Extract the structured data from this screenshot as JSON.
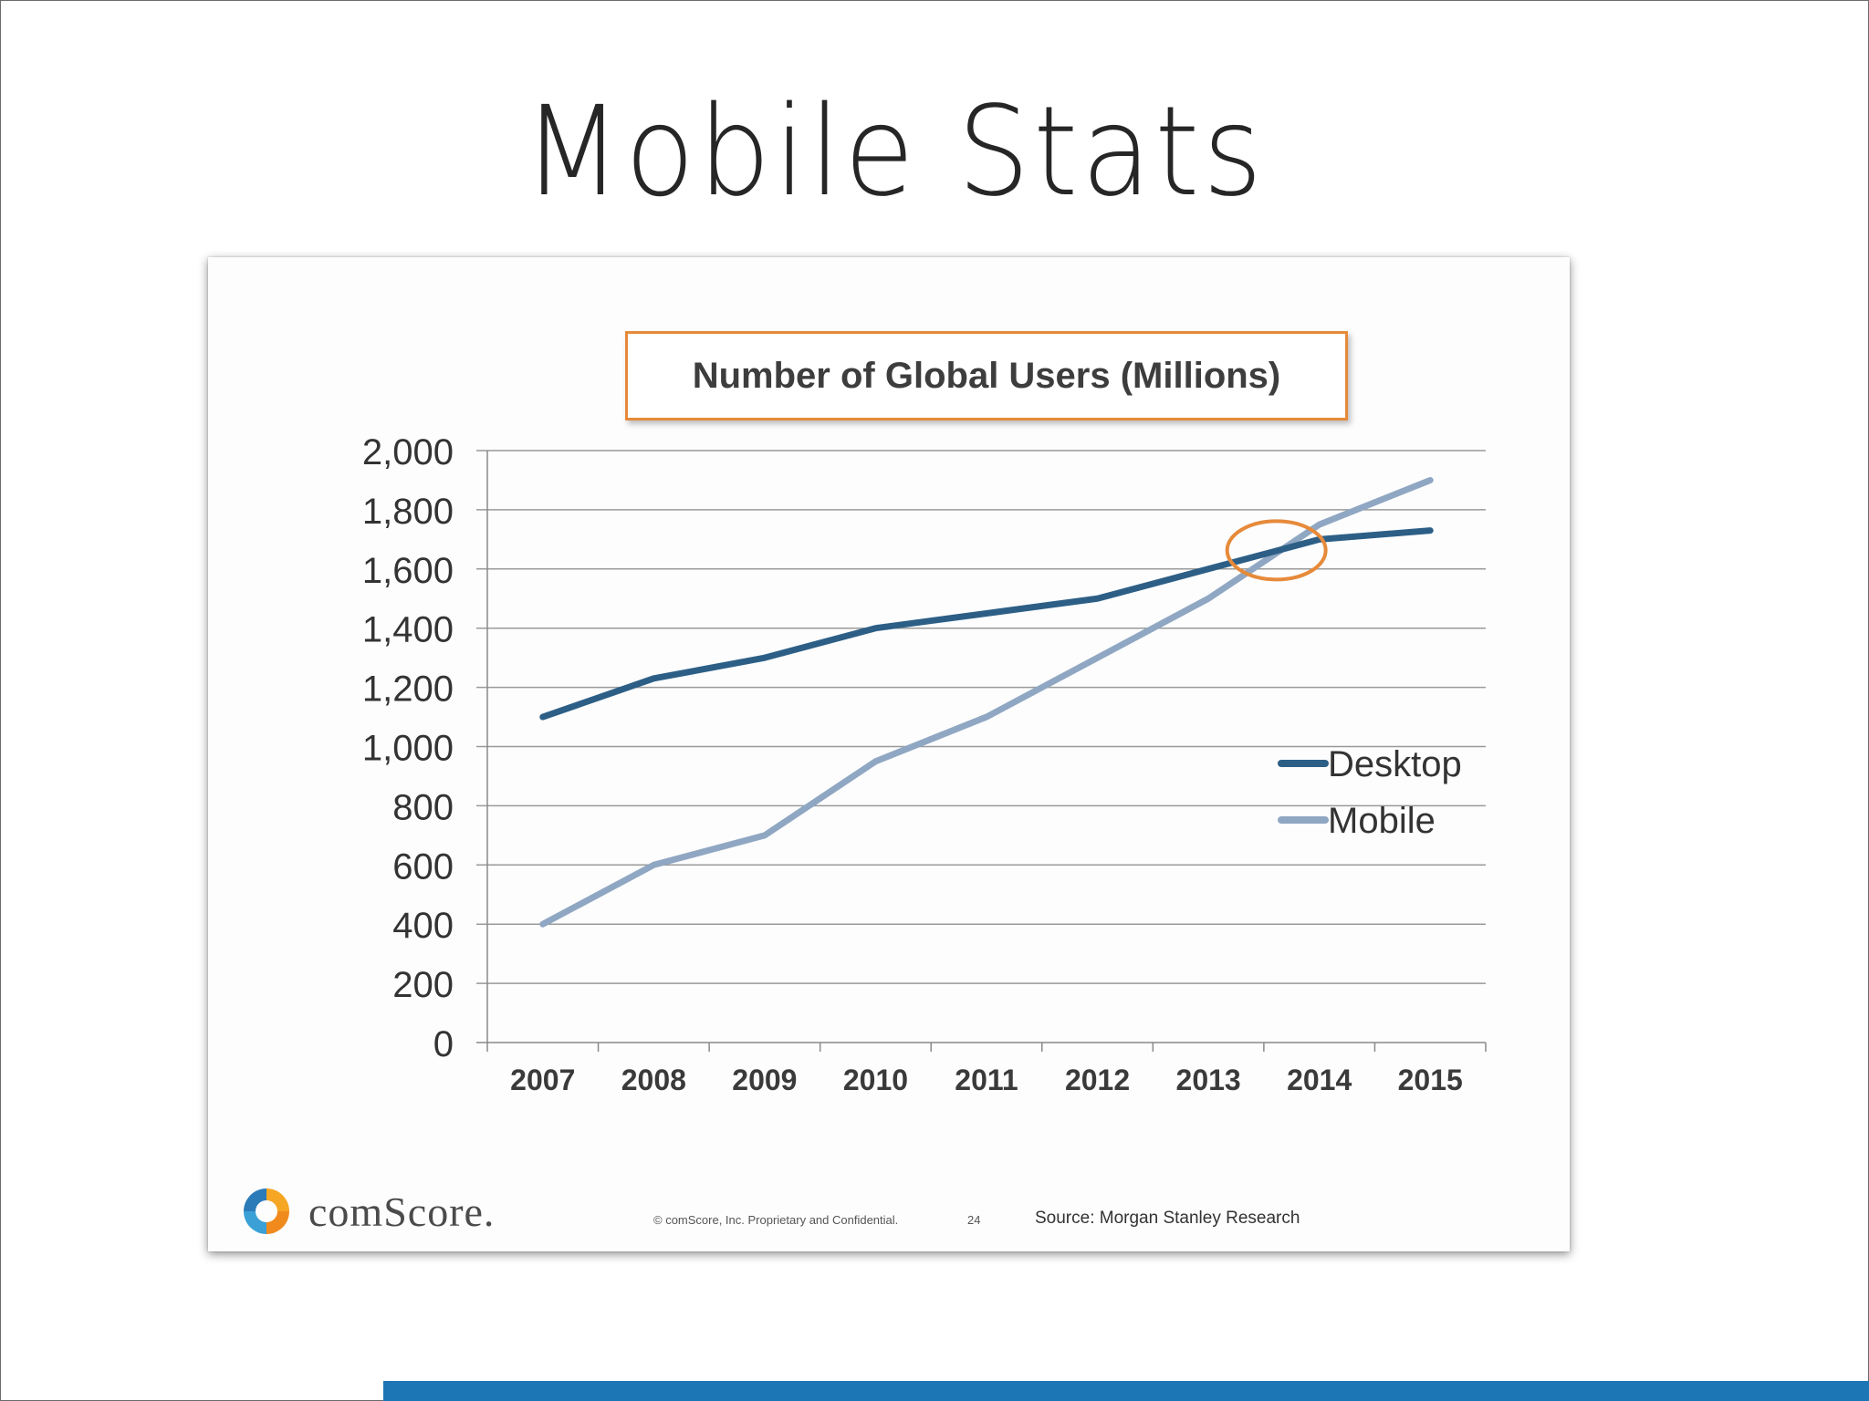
{
  "slide": {
    "title": "Mobile Stats"
  },
  "chart_data": {
    "type": "line",
    "title": "Number of Global Users (Millions)",
    "categories": [
      "2007",
      "2008",
      "2009",
      "2010",
      "2011",
      "2012",
      "2013",
      "2014",
      "2015"
    ],
    "series": [
      {
        "name": "Desktop",
        "values": [
          1100,
          1230,
          1300,
          1400,
          1450,
          1500,
          1600,
          1700,
          1730
        ],
        "color": "#2d5f86"
      },
      {
        "name": "Mobile",
        "values": [
          400,
          600,
          700,
          950,
          1100,
          1300,
          1500,
          1750,
          1900
        ],
        "color": "#8fa7c2"
      }
    ],
    "ylim": [
      0,
      2000
    ],
    "yticks": [
      "0",
      "200",
      "400",
      "600",
      "800",
      "1,000",
      "1,200",
      "1,400",
      "1,600",
      "1,800",
      "2,000"
    ],
    "grid": true,
    "legend": "right",
    "annotation": {
      "type": "circle",
      "at_category": "2014",
      "at_value": 1700,
      "color": "#e68a3a"
    },
    "title_box_color": "#e68a3a"
  },
  "footer": {
    "logo_text": "comScore.",
    "copyright": "© comScore, Inc.  Proprietary and Confidential.",
    "page_number": "24",
    "source": "Source: Morgan Stanley Research"
  },
  "accent_bar_color": "#1c76b5"
}
